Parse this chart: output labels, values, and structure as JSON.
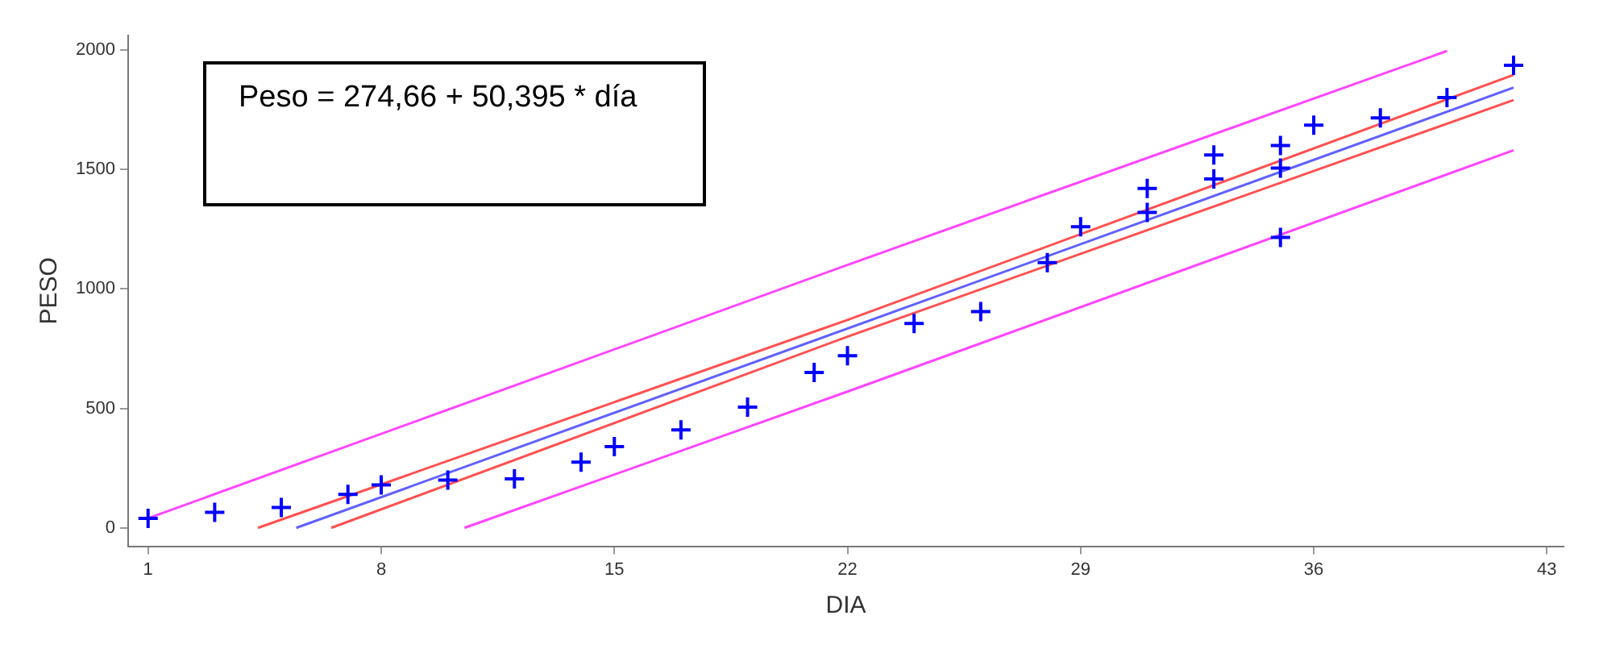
{
  "chart_data": {
    "type": "scatter",
    "xlabel": "DIA",
    "ylabel": "PESO",
    "annotations": [
      "Peso = 274,66 + 50,395 * día"
    ],
    "xlim": [
      0.4,
      43.5
    ],
    "xticks": [
      1,
      8,
      15,
      22,
      29,
      36,
      43
    ],
    "ylim": [
      -77,
      2060
    ],
    "yticks": [
      0,
      500,
      1000,
      1500,
      2000
    ],
    "grid": false,
    "legend": false,
    "series": [
      {
        "color": "#0000ff",
        "marker": "cross",
        "x": [
          1,
          3,
          5,
          7,
          8,
          10,
          12,
          14,
          15,
          17,
          19,
          21,
          22,
          24,
          26,
          28,
          29,
          31,
          31,
          33,
          33,
          35,
          35,
          35,
          36,
          38,
          40,
          42
        ],
        "values": [
          40,
          65,
          85,
          140,
          180,
          200,
          205,
          275,
          340,
          410,
          505,
          650,
          720,
          855,
          905,
          1110,
          1260,
          1320,
          1420,
          1460,
          1560,
          1600,
          1505,
          1215,
          1685,
          1715,
          1800,
          1935
        ]
      },
      {
        "type": "line",
        "color": "#6060ff",
        "marker": "none",
        "x": [
          5.45,
          42
        ],
        "values": [
          0,
          1842
        ]
      },
      {
        "type": "line",
        "color": "#ff5050",
        "marker": "none",
        "x": [
          4.3,
          22,
          42
        ],
        "values": [
          0,
          870,
          1895
        ]
      },
      {
        "type": "line",
        "color": "#ff5050",
        "marker": "none",
        "x": [
          6.5,
          22,
          42
        ],
        "values": [
          0,
          800,
          1790
        ]
      },
      {
        "type": "line",
        "color": "#ff44ff",
        "marker": "none",
        "x": [
          1,
          22,
          40
        ],
        "values": [
          40,
          1100,
          1995
        ]
      },
      {
        "type": "line",
        "color": "#ff44ff",
        "marker": "none",
        "x": [
          10.5,
          22,
          42
        ],
        "values": [
          0,
          570,
          1580
        ]
      }
    ]
  }
}
